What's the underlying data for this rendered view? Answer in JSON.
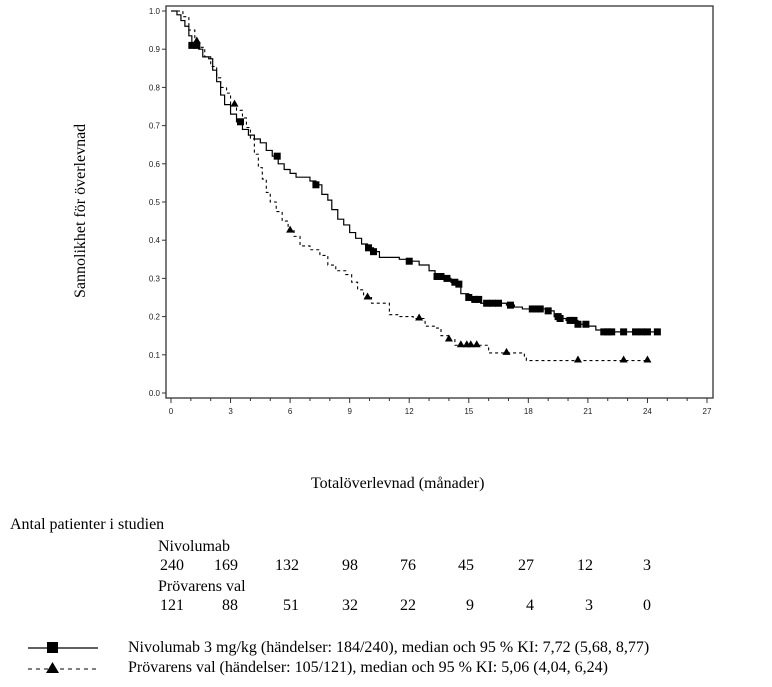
{
  "chart_data": {
    "type": "line",
    "subtype": "kaplan-meier",
    "title": "",
    "xlabel": "Totalöverlevnad (månader)",
    "ylabel": "Sannolikhet för överlevnad",
    "xlim": [
      0,
      27
    ],
    "ylim": [
      0.0,
      1.0
    ],
    "x_ticks": [
      0,
      3,
      6,
      9,
      12,
      15,
      18,
      21,
      24,
      27
    ],
    "x_tick_labels": [
      "0",
      "3",
      "6",
      "9",
      "12",
      "15",
      "18",
      "21",
      "24",
      "27"
    ],
    "y_ticks": [
      0.0,
      0.1,
      0.2,
      0.3,
      0.4,
      0.5,
      0.6,
      0.7,
      0.8,
      0.9,
      1.0
    ],
    "y_tick_labels": [
      "0.0",
      "0.1",
      "0.2",
      "0.3",
      "0.4",
      "0.5",
      "0.6",
      "0.7",
      "0.8",
      "0.9",
      "1.0"
    ],
    "grid": false,
    "series": [
      {
        "name": "Nivolumab 3 mg/kg",
        "line_style": "solid",
        "marker": "square",
        "color": "#000000",
        "points": [
          [
            0,
            1.0
          ],
          [
            0.3,
            0.99
          ],
          [
            0.5,
            0.975
          ],
          [
            0.7,
            0.96
          ],
          [
            0.9,
            0.935
          ],
          [
            1.05,
            0.91
          ],
          [
            1.4,
            0.9
          ],
          [
            1.6,
            0.88
          ],
          [
            1.9,
            0.875
          ],
          [
            2.1,
            0.845
          ],
          [
            2.3,
            0.815
          ],
          [
            2.5,
            0.78
          ],
          [
            2.7,
            0.755
          ],
          [
            3.0,
            0.73
          ],
          [
            3.3,
            0.71
          ],
          [
            3.6,
            0.69
          ],
          [
            3.9,
            0.675
          ],
          [
            4.2,
            0.665
          ],
          [
            4.5,
            0.655
          ],
          [
            4.8,
            0.635
          ],
          [
            5.1,
            0.62
          ],
          [
            5.4,
            0.6
          ],
          [
            5.7,
            0.585
          ],
          [
            6.0,
            0.575
          ],
          [
            6.3,
            0.565
          ],
          [
            6.6,
            0.565
          ],
          [
            7.0,
            0.555
          ],
          [
            7.3,
            0.545
          ],
          [
            7.6,
            0.52
          ],
          [
            7.9,
            0.505
          ],
          [
            8.1,
            0.48
          ],
          [
            8.4,
            0.455
          ],
          [
            8.7,
            0.44
          ],
          [
            9.0,
            0.42
          ],
          [
            9.3,
            0.405
          ],
          [
            9.6,
            0.39
          ],
          [
            9.9,
            0.38
          ],
          [
            10.2,
            0.37
          ],
          [
            10.5,
            0.355
          ],
          [
            11.0,
            0.355
          ],
          [
            11.5,
            0.35
          ],
          [
            12.0,
            0.345
          ],
          [
            12.5,
            0.335
          ],
          [
            13.0,
            0.32
          ],
          [
            13.3,
            0.305
          ],
          [
            13.7,
            0.3
          ],
          [
            14.1,
            0.29
          ],
          [
            14.4,
            0.285
          ],
          [
            14.6,
            0.26
          ],
          [
            15.0,
            0.25
          ],
          [
            15.3,
            0.245
          ],
          [
            15.6,
            0.235
          ],
          [
            16.5,
            0.235
          ],
          [
            16.9,
            0.23
          ],
          [
            17.3,
            0.225
          ],
          [
            17.7,
            0.22
          ],
          [
            18.3,
            0.22
          ],
          [
            19.0,
            0.215
          ],
          [
            19.3,
            0.2
          ],
          [
            19.6,
            0.195
          ],
          [
            19.9,
            0.19
          ],
          [
            20.5,
            0.18
          ],
          [
            21.0,
            0.175
          ],
          [
            21.4,
            0.165
          ],
          [
            21.7,
            0.16
          ],
          [
            23.0,
            0.16
          ],
          [
            24.5,
            0.16
          ]
        ],
        "censor_times": [
          1.05,
          1.3,
          3.5,
          5.35,
          7.3,
          9.95,
          10.2,
          12.0,
          13.4,
          13.6,
          13.9,
          14.3,
          14.5,
          15.0,
          15.3,
          15.5,
          15.9,
          16.2,
          16.5,
          17.1,
          18.2,
          18.4,
          18.6,
          19.0,
          19.5,
          19.6,
          20.1,
          20.3,
          20.5,
          20.9,
          21.8,
          22.0,
          22.2,
          22.8,
          23.4,
          23.7,
          24.0,
          24.5
        ],
        "events": 184,
        "n": 240,
        "median": 7.72,
        "ci95": [
          5.68,
          8.77
        ]
      },
      {
        "name": "Prövarens val",
        "line_style": "dashed",
        "marker": "triangle",
        "color": "#000000",
        "points": [
          [
            0,
            1.0
          ],
          [
            0.3,
            1.0
          ],
          [
            0.6,
            0.985
          ],
          [
            0.9,
            0.95
          ],
          [
            1.2,
            0.92
          ],
          [
            1.4,
            0.905
          ],
          [
            1.7,
            0.88
          ],
          [
            2.0,
            0.855
          ],
          [
            2.3,
            0.825
          ],
          [
            2.5,
            0.8
          ],
          [
            2.8,
            0.785
          ],
          [
            3.0,
            0.755
          ],
          [
            3.3,
            0.74
          ],
          [
            3.6,
            0.72
          ],
          [
            3.8,
            0.695
          ],
          [
            4.0,
            0.665
          ],
          [
            4.2,
            0.625
          ],
          [
            4.4,
            0.59
          ],
          [
            4.6,
            0.56
          ],
          [
            4.8,
            0.525
          ],
          [
            5.0,
            0.5
          ],
          [
            5.3,
            0.475
          ],
          [
            5.6,
            0.45
          ],
          [
            5.9,
            0.425
          ],
          [
            6.2,
            0.41
          ],
          [
            6.5,
            0.385
          ],
          [
            7.0,
            0.375
          ],
          [
            7.5,
            0.36
          ],
          [
            7.9,
            0.335
          ],
          [
            8.3,
            0.32
          ],
          [
            8.8,
            0.31
          ],
          [
            9.1,
            0.29
          ],
          [
            9.4,
            0.27
          ],
          [
            9.7,
            0.25
          ],
          [
            10.1,
            0.235
          ],
          [
            10.6,
            0.235
          ],
          [
            11.0,
            0.205
          ],
          [
            11.5,
            0.2
          ],
          [
            12.2,
            0.195
          ],
          [
            12.8,
            0.175
          ],
          [
            13.3,
            0.17
          ],
          [
            13.6,
            0.15
          ],
          [
            14.0,
            0.14
          ],
          [
            14.3,
            0.125
          ],
          [
            15.5,
            0.125
          ],
          [
            16.0,
            0.105
          ],
          [
            17.0,
            0.105
          ],
          [
            17.8,
            0.095
          ],
          [
            17.9,
            0.085
          ],
          [
            20.5,
            0.085
          ],
          [
            24.0,
            0.085
          ]
        ],
        "censor_times": [
          1.3,
          3.2,
          6.0,
          9.9,
          12.5,
          14.0,
          14.6,
          14.9,
          15.1,
          15.4,
          16.9,
          20.5,
          22.8,
          24.0
        ],
        "events": 105,
        "n": 121,
        "median": 5.06,
        "ci95": [
          4.04,
          6.24
        ]
      }
    ],
    "legend": [
      {
        "symbol": "solid-square",
        "text": "Nivolumab 3 mg/kg (händelser: 184/240), median och 95 % KI: 7,72 (5,68, 8,77)"
      },
      {
        "symbol": "dashed-triangle",
        "text": "Prövarens val (händelser: 105/121), median och 95 % KI: 5,06 (4,04, 6,24)"
      }
    ],
    "legend_position": "bottom",
    "at_risk": {
      "title": "Antal patienter i studien",
      "groups": [
        {
          "name": "Nivolumab",
          "values": [
            "240",
            "169",
            "132",
            "98",
            "76",
            "45",
            "27",
            "12",
            "3"
          ]
        },
        {
          "name": "Prövarens val",
          "values": [
            "121",
            "88",
            "51",
            "32",
            "22",
            "9",
            "4",
            "3",
            "0"
          ]
        }
      ]
    }
  }
}
